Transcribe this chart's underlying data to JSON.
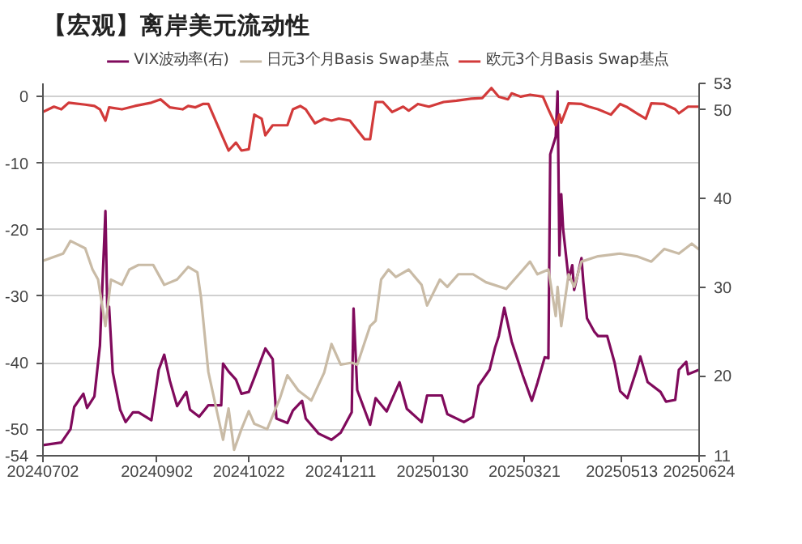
{
  "chart_data": {
    "type": "line",
    "title": "【宏观】离岸美元流动性",
    "xlim": [
      "2024-07-02",
      "2025-06-24"
    ],
    "xticks": [
      {
        "value": "2024-07-02",
        "label": "20240702"
      },
      {
        "value": "2024-09-02",
        "label": "20240902"
      },
      {
        "value": "2024-10-22",
        "label": "20241022"
      },
      {
        "value": "2024-12-11",
        "label": "20241211"
      },
      {
        "value": "2025-01-30",
        "label": "20250130"
      },
      {
        "value": "2025-03-21",
        "label": "20250321"
      },
      {
        "value": "2025-05-13",
        "label": "20250513"
      },
      {
        "value": "2025-06-24",
        "label": "20250624"
      }
    ],
    "ylim": [
      -54,
      2
    ],
    "yticks": [
      0,
      -10,
      -20,
      -30,
      -40,
      -50,
      -54
    ],
    "y2lim": [
      11,
      53
    ],
    "y2ticks": [
      11,
      20,
      30,
      40,
      50,
      53
    ],
    "grid": "y",
    "legend": "top",
    "series": [
      {
        "name": "VIX波动率(右)",
        "color": "#800a5c",
        "axis": "y2",
        "x": [
          "2024-07-02",
          "2024-07-12",
          "2024-07-17",
          "2024-07-19",
          "2024-07-24",
          "2024-07-26",
          "2024-07-30",
          "2024-08-02",
          "2024-08-05",
          "2024-08-06",
          "2024-08-07",
          "2024-08-09",
          "2024-08-13",
          "2024-08-16",
          "2024-08-20",
          "2024-08-23",
          "2024-08-27",
          "2024-08-30",
          "2024-09-03",
          "2024-09-06",
          "2024-09-09",
          "2024-09-13",
          "2024-09-18",
          "2024-09-20",
          "2024-09-25",
          "2024-09-30",
          "2024-10-07",
          "2024-10-08",
          "2024-10-11",
          "2024-10-15",
          "2024-10-18",
          "2024-10-22",
          "2024-10-25",
          "2024-10-31",
          "2024-11-04",
          "2024-11-06",
          "2024-11-12",
          "2024-11-15",
          "2024-11-20",
          "2024-11-22",
          "2024-11-29",
          "2024-12-06",
          "2024-12-11",
          "2024-12-17",
          "2024-12-18",
          "2024-12-20",
          "2024-12-27",
          "2024-12-30",
          "2025-01-05",
          "2025-01-12",
          "2025-01-16",
          "2025-01-24",
          "2025-01-27",
          "2025-02-04",
          "2025-02-07",
          "2025-02-16",
          "2025-02-21",
          "2025-02-24",
          "2025-03-02",
          "2025-03-05",
          "2025-03-07",
          "2025-03-10",
          "2025-03-14",
          "2025-03-20",
          "2025-03-25",
          "2025-03-28",
          "2025-04-01",
          "2025-04-03",
          "2025-04-04",
          "2025-04-07",
          "2025-04-08",
          "2025-04-09",
          "2025-04-10",
          "2025-04-11",
          "2025-04-14",
          "2025-04-16",
          "2025-04-17",
          "2025-04-21",
          "2025-04-22",
          "2025-04-24",
          "2025-04-28",
          "2025-04-30",
          "2025-05-05",
          "2025-05-09",
          "2025-05-12",
          "2025-05-16",
          "2025-05-21",
          "2025-05-23",
          "2025-05-27",
          "2025-06-03",
          "2025-06-06",
          "2025-06-11",
          "2025-06-13",
          "2025-06-17",
          "2025-06-18",
          "2025-06-24"
        ],
        "values": [
          12.2,
          12.5,
          14.0,
          16.5,
          18.0,
          16.4,
          17.7,
          23.4,
          38.6,
          27.7,
          27.8,
          20.4,
          16.2,
          14.8,
          15.9,
          15.9,
          15.4,
          15.0,
          20.7,
          22.4,
          19.5,
          16.6,
          18.2,
          16.2,
          15.4,
          16.7,
          16.7,
          21.4,
          20.5,
          19.6,
          18.0,
          18.2,
          19.8,
          23.1,
          21.9,
          15.2,
          14.7,
          16.1,
          17.2,
          15.2,
          13.5,
          12.8,
          13.6,
          15.9,
          27.6,
          18.4,
          14.5,
          17.5,
          16.0,
          19.3,
          16.3,
          14.8,
          17.8,
          17.8,
          15.7,
          14.8,
          15.4,
          18.9,
          20.7,
          23.2,
          24.5,
          27.7,
          23.9,
          20.1,
          17.2,
          19.2,
          22.1,
          22.0,
          45.0,
          47.0,
          52.1,
          33.6,
          40.5,
          36.6,
          30.9,
          32.5,
          29.7,
          33.3,
          30.6,
          26.5,
          25.0,
          24.5,
          24.5,
          21.5,
          18.3,
          17.5,
          20.7,
          22.2,
          19.3,
          18.2,
          17.1,
          17.3,
          20.7,
          21.6,
          20.2,
          20.7
        ]
      },
      {
        "name": "日元3个月Basis Swap基点",
        "color": "#c9bba6",
        "x": [
          "2024-07-02",
          "2024-07-13",
          "2024-07-17",
          "2024-07-25",
          "2024-07-29",
          "2024-08-01",
          "2024-08-05",
          "2024-08-08",
          "2024-08-14",
          "2024-08-18",
          "2024-08-23",
          "2024-08-31",
          "2024-09-06",
          "2024-09-13",
          "2024-09-19",
          "2024-09-24",
          "2024-09-26",
          "2024-09-30",
          "2024-10-08",
          "2024-10-11",
          "2024-10-14",
          "2024-10-18",
          "2024-10-22",
          "2024-10-25",
          "2024-11-01",
          "2024-11-08",
          "2024-11-12",
          "2024-11-18",
          "2024-11-25",
          "2024-12-02",
          "2024-12-06",
          "2024-12-11",
          "2024-12-17",
          "2024-12-20",
          "2024-12-27",
          "2024-12-30",
          "2025-01-02",
          "2025-01-06",
          "2025-01-10",
          "2025-01-17",
          "2025-01-24",
          "2025-01-27",
          "2025-02-03",
          "2025-02-07",
          "2025-02-13",
          "2025-02-21",
          "2025-02-28",
          "2025-03-11",
          "2025-03-18",
          "2025-03-24",
          "2025-03-28",
          "2025-04-03",
          "2025-04-07",
          "2025-04-08",
          "2025-04-10",
          "2025-04-14",
          "2025-04-17",
          "2025-04-21",
          "2025-04-30",
          "2025-05-12",
          "2025-05-21",
          "2025-05-29",
          "2025-06-05",
          "2025-06-13",
          "2025-06-20",
          "2025-06-24"
        ],
        "values": [
          -24.7,
          -23.6,
          -21.7,
          -22.8,
          -26.0,
          -27.5,
          -34.5,
          -27.5,
          -28.3,
          -26.0,
          -25.3,
          -25.3,
          -28.3,
          -27.5,
          -25.6,
          -26.4,
          -30.2,
          -41.4,
          -51.6,
          -46.9,
          -53.1,
          -50.0,
          -47.3,
          -49.2,
          -50.0,
          -45.3,
          -41.9,
          -44.2,
          -45.7,
          -41.5,
          -37.2,
          -40.3,
          -40.0,
          -40.3,
          -34.5,
          -33.7,
          -27.5,
          -26.0,
          -27.1,
          -26.0,
          -28.3,
          -31.4,
          -27.5,
          -28.6,
          -26.7,
          -26.7,
          -27.9,
          -28.9,
          -26.7,
          -24.8,
          -26.7,
          -26.0,
          -33.0,
          -28.6,
          -34.5,
          -26.7,
          -28.6,
          -24.8,
          -24.0,
          -23.6,
          -24.0,
          -24.8,
          -22.9,
          -23.6,
          -22.1,
          -23.0
        ]
      },
      {
        "name": "欧元3个月Basis Swap基点",
        "color": "#d23a3a",
        "x": [
          "2024-07-02",
          "2024-07-08",
          "2024-07-12",
          "2024-07-16",
          "2024-07-25",
          "2024-07-30",
          "2024-08-02",
          "2024-08-05",
          "2024-08-07",
          "2024-08-14",
          "2024-08-21",
          "2024-08-30",
          "2024-09-04",
          "2024-09-09",
          "2024-09-16",
          "2024-09-19",
          "2024-09-23",
          "2024-09-27",
          "2024-09-30",
          "2024-10-08",
          "2024-10-11",
          "2024-10-15",
          "2024-10-18",
          "2024-10-22",
          "2024-10-25",
          "2024-10-29",
          "2024-10-31",
          "2024-11-04",
          "2024-11-08",
          "2024-11-12",
          "2024-11-15",
          "2024-11-19",
          "2024-11-22",
          "2024-11-27",
          "2024-12-02",
          "2024-12-06",
          "2024-12-10",
          "2024-12-16",
          "2024-12-20",
          "2024-12-24",
          "2024-12-27",
          "2024-12-30",
          "2025-01-03",
          "2025-01-08",
          "2025-01-14",
          "2025-01-17",
          "2025-01-22",
          "2025-01-28",
          "2025-02-05",
          "2025-02-12",
          "2025-02-20",
          "2025-02-26",
          "2025-03-03",
          "2025-03-07",
          "2025-03-12",
          "2025-03-14",
          "2025-03-19",
          "2025-03-24",
          "2025-03-31",
          "2025-04-03",
          "2025-04-07",
          "2025-04-09",
          "2025-04-10",
          "2025-04-14",
          "2025-04-21",
          "2025-04-25",
          "2025-04-30",
          "2025-05-07",
          "2025-05-12",
          "2025-05-16",
          "2025-05-21",
          "2025-05-26",
          "2025-05-29",
          "2025-06-05",
          "2025-06-11",
          "2025-06-13",
          "2025-06-18",
          "2025-06-24"
        ],
        "values": [
          -2.3,
          -1.5,
          -1.9,
          -0.9,
          -1.2,
          -1.4,
          -1.9,
          -3.6,
          -1.6,
          -1.9,
          -1.4,
          -0.9,
          -0.4,
          -1.6,
          -1.9,
          -1.4,
          -1.6,
          -1.1,
          -1.1,
          -6.2,
          -8.1,
          -6.9,
          -8.1,
          -7.9,
          -2.7,
          -3.3,
          -5.8,
          -4.3,
          -4.3,
          -4.3,
          -1.9,
          -1.4,
          -1.9,
          -4.0,
          -3.3,
          -3.6,
          -3.3,
          -3.6,
          -5.0,
          -6.4,
          -6.4,
          -0.8,
          -0.8,
          -2.3,
          -1.5,
          -2.1,
          -1.1,
          -1.5,
          -0.8,
          -0.6,
          -0.3,
          -0.2,
          1.3,
          0.0,
          -0.4,
          0.5,
          0.0,
          0.3,
          0.0,
          -1.9,
          -4.3,
          -2.7,
          -3.9,
          -1.0,
          -1.1,
          -1.5,
          -1.9,
          -2.7,
          -1.1,
          -1.6,
          -2.5,
          -3.3,
          -1.0,
          -1.1,
          -1.9,
          -2.5,
          -1.5,
          -1.5
        ]
      }
    ]
  }
}
